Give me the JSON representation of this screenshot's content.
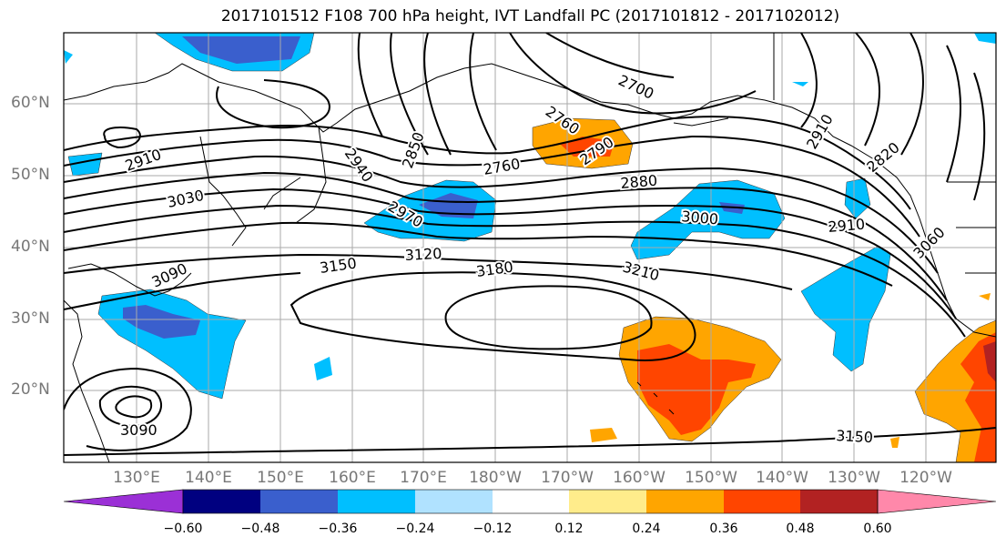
{
  "title": "2017101512 F108 700 hPa height, IVT Landfall PC (2017101812 - 2017102012)",
  "lat_labels": [
    "60°N",
    "50°N",
    "40°N",
    "30°N",
    "20°N"
  ],
  "lon_labels": [
    "130°E",
    "140°E",
    "150°E",
    "160°E",
    "170°E",
    "180°W",
    "170°W",
    "160°W",
    "150°W",
    "140°W",
    "130°W",
    "120°W"
  ],
  "contour_labels": [
    "2910",
    "3030",
    "3090",
    "3090",
    "2940",
    "2850",
    "2970",
    "2760",
    "2760",
    "2790",
    "2700",
    "2880",
    "3000",
    "2910",
    "2820",
    "2910",
    "3060",
    "3150",
    "3120",
    "3180",
    "3210",
    "3150"
  ],
  "colorbar": {
    "ticks": [
      "−0.60",
      "−0.48",
      "−0.36",
      "−0.24",
      "−0.12",
      "0.12",
      "0.24",
      "0.36",
      "0.48",
      "0.60"
    ],
    "colors": [
      "#9b30d6",
      "#000080",
      "#3a5fcd",
      "#00bfff",
      "#b0e2ff",
      "#ffffff",
      "#ffec8b",
      "#ffa500",
      "#ff4500",
      "#b22222",
      "#ff88aa"
    ]
  }
}
